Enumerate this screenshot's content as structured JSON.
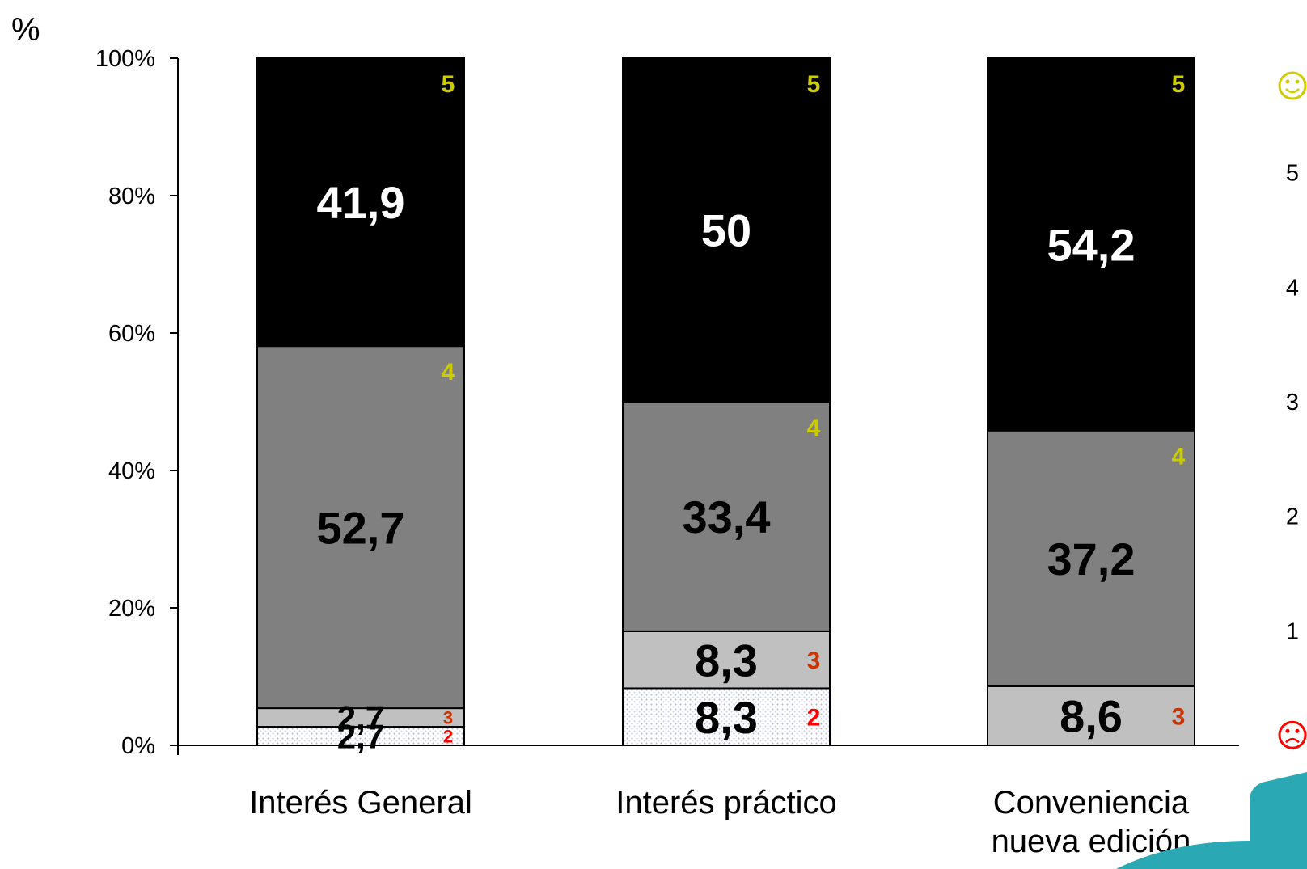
{
  "chart_data": {
    "type": "bar",
    "stacked": true,
    "ylabel": "%",
    "ylim": [
      0,
      100
    ],
    "yticks": [
      "0%",
      "20%",
      "40%",
      "60%",
      "80%",
      "100%"
    ],
    "categories": [
      "Interés General",
      "Interés práctico",
      "Conveniencia nueva edición"
    ],
    "category_lines": [
      [
        "Interés General"
      ],
      [
        "Interés práctico"
      ],
      [
        "Conveniencia",
        "nueva edición"
      ]
    ],
    "segments": [
      {
        "level": "2",
        "fill": "dots",
        "values": [
          2.7,
          8.3,
          0
        ],
        "labels": [
          "2,7",
          "8,3",
          ""
        ],
        "level_color": "#ff0000"
      },
      {
        "level": "3",
        "fill": "#c0c0c0",
        "values": [
          2.7,
          8.3,
          8.6
        ],
        "labels": [
          "2,7",
          "8,3",
          "8,6"
        ],
        "level_color": "#cc3300"
      },
      {
        "level": "4",
        "fill": "#808080",
        "values": [
          52.7,
          33.4,
          37.2
        ],
        "labels": [
          "52,7",
          "33,4",
          "37,2"
        ],
        "level_color": "#cccc00"
      },
      {
        "level": "5",
        "fill": "#000000",
        "values": [
          41.9,
          50,
          54.2
        ],
        "labels": [
          "41,9",
          "50",
          "54,2"
        ],
        "level_color": "#cccc00"
      }
    ],
    "scale_legend": {
      "levels": [
        "5",
        "4",
        "3",
        "2",
        "1"
      ],
      "top_icon": "smiley-face-icon",
      "bottom_icon": "sad-face-icon",
      "top_color": "#cccc00",
      "bottom_color": "#ff0000"
    },
    "grid": false
  }
}
